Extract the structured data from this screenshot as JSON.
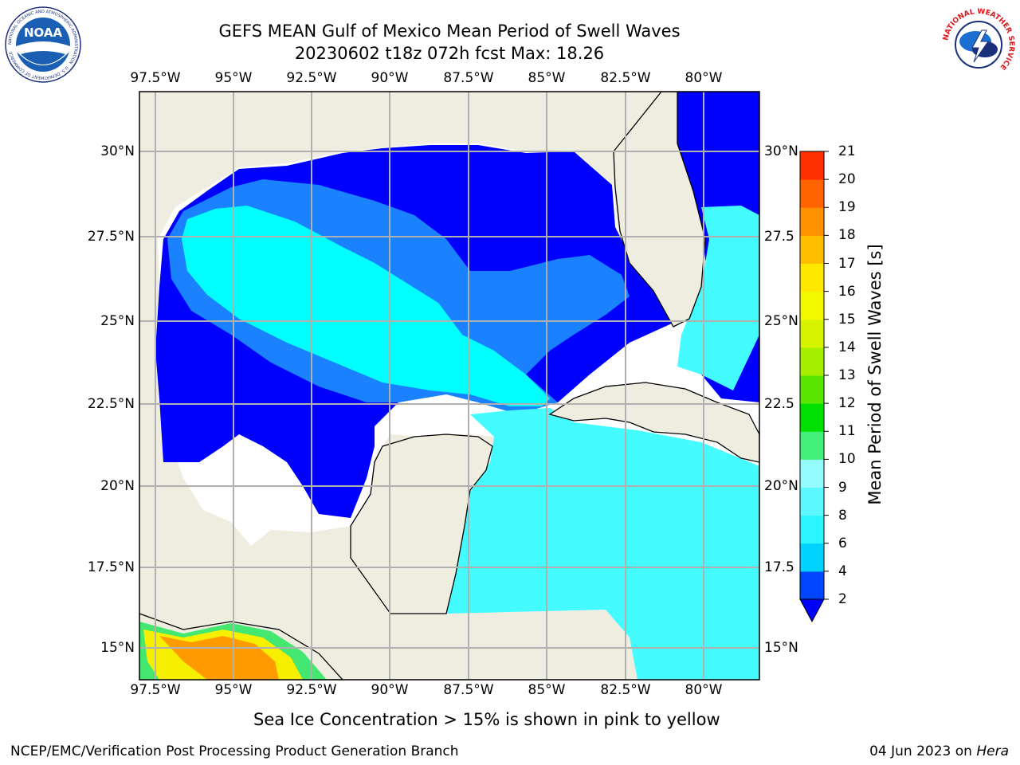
{
  "title_line1": "GEFS MEAN Gulf of Mexico Mean Period of Swell Waves",
  "title_line2": "20230602 t18z 072h fcst   Max: 18.26",
  "logo_left_text": "NOAA",
  "logo_left_ring_text": "NATIONAL OCEANIC AND ATMOSPHERIC ADMINISTRATION · U.S. DEPARTMENT OF COMMERCE",
  "logo_right_ring_text": "NATIONAL WEATHER SERVICE",
  "lon_ticks": [
    "97.5°W",
    "95°W",
    "92.5°W",
    "90°W",
    "87.5°W",
    "85°W",
    "82.5°W",
    "80°W"
  ],
  "lat_ticks_left": [
    "30°N",
    "27.5°N",
    "25°N",
    "22.5°N",
    "20°N",
    "17.5°N",
    "15°N"
  ],
  "lat_ticks_right": [
    "30°N",
    "27.5",
    "25°N",
    "22.5",
    "20°N",
    "17.5",
    "15°N"
  ],
  "colorbar": {
    "label": "Mean Period of Swell Waves [s]",
    "ticks": [
      "2",
      "4",
      "6",
      "8",
      "9",
      "10",
      "11",
      "12",
      "13",
      "14",
      "15",
      "16",
      "17",
      "18",
      "19",
      "20",
      "21"
    ],
    "colors": [
      "#0046ff",
      "#00d2ff",
      "#2cf5ff",
      "#5cf8ff",
      "#94fbff",
      "#44f07a",
      "#00e000",
      "#5ae600",
      "#a6ee00",
      "#d6f400",
      "#f2f800",
      "#ffe800",
      "#ffbf00",
      "#ff9200",
      "#ff6400",
      "#ff3000",
      "#ff0000"
    ],
    "extend_color": "#0000ff"
  },
  "map_colors": {
    "land": "#eeede0",
    "deep_blue": "#0000ff",
    "mid_blue": "#1a82ff",
    "cyan": "#00ffff",
    "light_cyan": "#44fcff",
    "no_data": "#ffffff"
  },
  "note": "Sea Ice Concentration > 15% is shown in pink to yellow",
  "footer_left": "NCEP/EMC/Verification Post Processing Product Generation Branch",
  "footer_date": "04 Jun 2023 on ",
  "footer_host": "Hera"
}
